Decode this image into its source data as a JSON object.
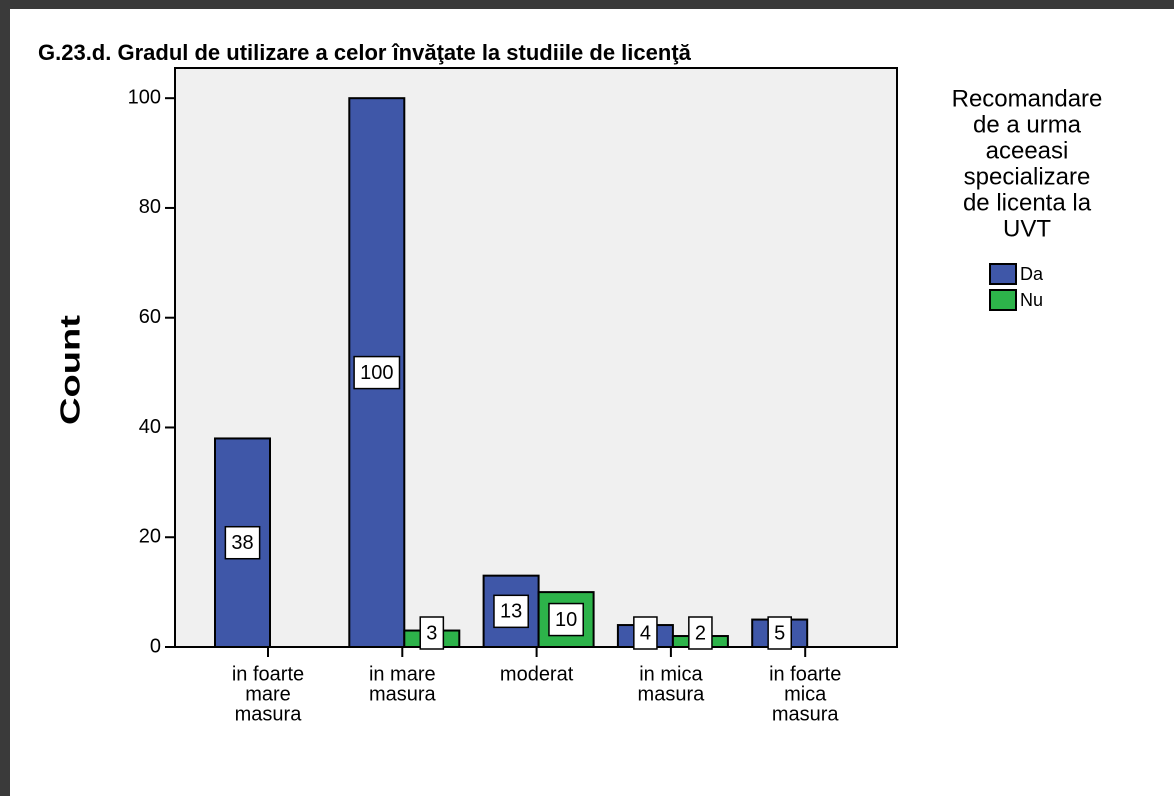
{
  "chart_data": {
    "type": "bar",
    "title": "G.23.d. Gradul de utilizare a celor învăţate la studiile de licenţă",
    "y_label": "Count",
    "categories": [
      [
        "in foarte",
        "mare",
        "masura"
      ],
      [
        "in mare",
        "masura"
      ],
      [
        "moderat"
      ],
      [
        "in mica",
        "masura"
      ],
      [
        "in foarte",
        "mica",
        "masura"
      ]
    ],
    "series": [
      {
        "name": "Da",
        "color": "#3f57a8",
        "values": [
          38,
          100,
          13,
          4,
          5
        ]
      },
      {
        "name": "Nu",
        "color": "#2db34a",
        "values": [
          null,
          3,
          10,
          2,
          null
        ]
      }
    ],
    "legend_title": [
      "Recomandare",
      "de a urma",
      "aceeasi",
      "specializare",
      "de licenta la",
      "UVT"
    ],
    "ylim": [
      0,
      105.5
    ],
    "yticks": [
      0,
      20,
      40,
      60,
      80,
      100
    ],
    "grid": false
  }
}
